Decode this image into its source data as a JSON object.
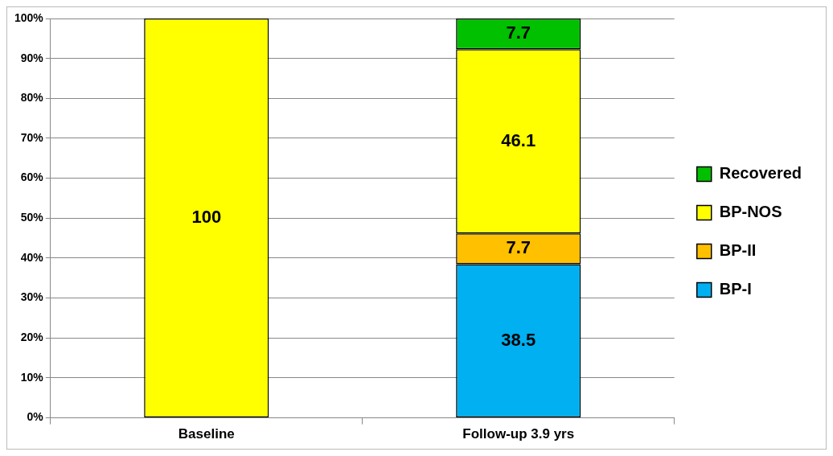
{
  "chart_data": {
    "type": "bar",
    "stacked": true,
    "categories": [
      "Baseline",
      "Follow-up 3.9 yrs"
    ],
    "series": [
      {
        "name": "BP-I",
        "color": "#00b0f0",
        "values": [
          null,
          38.5
        ]
      },
      {
        "name": "BP-II",
        "color": "#ffc000",
        "values": [
          null,
          7.7
        ]
      },
      {
        "name": "BP-NOS",
        "color": "#ffff00",
        "values": [
          100,
          46.1
        ]
      },
      {
        "name": "Recovered",
        "color": "#00c000",
        "values": [
          null,
          7.7
        ]
      }
    ],
    "ylim": [
      0,
      100
    ],
    "yticks": [
      {
        "value": 0,
        "label": "0%"
      },
      {
        "value": 10,
        "label": "10%"
      },
      {
        "value": 20,
        "label": "20%"
      },
      {
        "value": 30,
        "label": "30%"
      },
      {
        "value": 40,
        "label": "40%"
      },
      {
        "value": 50,
        "label": "50%"
      },
      {
        "value": 60,
        "label": "60%"
      },
      {
        "value": 70,
        "label": "70%"
      },
      {
        "value": 80,
        "label": "80%"
      },
      {
        "value": 90,
        "label": "90%"
      },
      {
        "value": 100,
        "label": "100%"
      }
    ],
    "grid": "y",
    "legend": "right",
    "data_labels": true
  }
}
